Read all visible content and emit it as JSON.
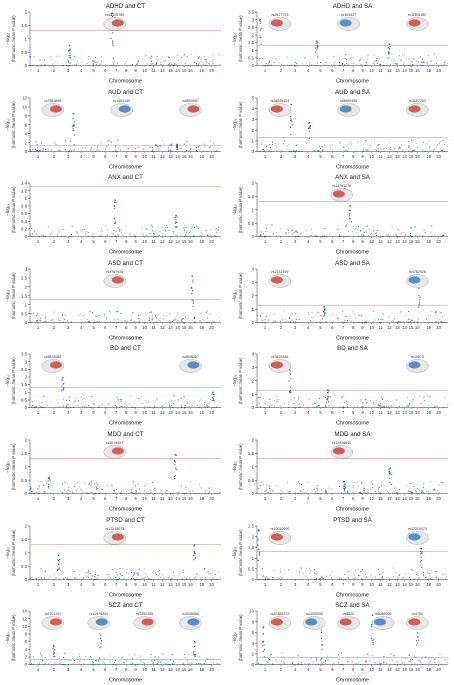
{
  "colors": {
    "blue": "#2f5f9e",
    "light_blue": "#7ea6cc",
    "threshold": "#d98080",
    "brain_red": "#c8312b",
    "brain_blue": "#2d6fb0"
  },
  "chart_data": [
    {
      "type": "scatter",
      "title": "ADHD and CT",
      "ylim": [
        0,
        2
      ],
      "yticks": [
        0,
        0.5,
        1.0,
        1.5,
        2.0
      ],
      "threshold": 1.3,
      "peaks": [
        {
          "x": 3.6,
          "y": 0.75
        },
        {
          "x": 7.1,
          "y": 1.95
        }
      ],
      "annotations": [
        "rs13205780"
      ]
    },
    {
      "type": "scatter",
      "title": "ADHD and SA",
      "ylim": [
        0,
        3.5
      ],
      "yticks": [
        0,
        0.5,
        1.0,
        1.5,
        2.0,
        2.5,
        3.0,
        3.5
      ],
      "threshold": 1.3,
      "peaks": [
        {
          "x": 1.2,
          "y": 3.0
        },
        {
          "x": 5.2,
          "y": 1.6
        },
        {
          "x": 12.5,
          "y": 1.4
        }
      ],
      "annotations": [
        "rs2527793",
        "rs304437",
        "rs11831857"
      ]
    },
    {
      "type": "scatter",
      "title": "AUD and CT",
      "ylim": [
        0,
        12
      ],
      "yticks": [
        0,
        2,
        4,
        6,
        8,
        10,
        12
      ],
      "threshold": 1.3,
      "peaks": [
        {
          "x": 3.9,
          "y": 8.5
        },
        {
          "x": 14.5,
          "y": 1.6
        }
      ],
      "annotations": [
        "rs7583896",
        "rs1463140",
        "rs6559567"
      ]
    },
    {
      "type": "scatter",
      "title": "AUD and SA",
      "ylim": [
        0,
        5
      ],
      "yticks": [
        0,
        1,
        2,
        3,
        4,
        5
      ],
      "threshold": 1.3,
      "peaks": [
        {
          "x": 3.2,
          "y": 4.4
        },
        {
          "x": 4.6,
          "y": 2.7
        }
      ],
      "annotations": [
        "rs34825124",
        "rs5869459",
        "rs2157753"
      ]
    },
    {
      "type": "scatter",
      "title": "ANX and CT",
      "ylim": [
        0,
        1.4
      ],
      "yticks": [
        0,
        0.2,
        0.4,
        0.6,
        0.8,
        1.0,
        1.2,
        1.4
      ],
      "threshold": 1.3,
      "peaks": [
        {
          "x": 7.4,
          "y": 0.95
        },
        {
          "x": 14.3,
          "y": 0.55
        }
      ],
      "annotations": []
    },
    {
      "type": "scatter",
      "title": "ANX and SA",
      "ylim": [
        0,
        2
      ],
      "yticks": [
        0,
        0.5,
        1.0,
        1.5,
        2.0
      ],
      "threshold": 1.3,
      "peaks": [
        {
          "x": 8.2,
          "y": 1.15
        }
      ],
      "annotations": [
        "rs11781276"
      ]
    },
    {
      "type": "scatter",
      "title": "ASD and CT",
      "ylim": [
        0,
        3
      ],
      "yticks": [
        0,
        0.5,
        1.0,
        1.5,
        2.0,
        2.5,
        3.0
      ],
      "threshold": 1.3,
      "peaks": [
        {
          "x": 16.8,
          "y": 2.6
        }
      ],
      "annotations": [
        "rs4787926"
      ]
    },
    {
      "type": "scatter",
      "title": "ASD and SA",
      "ylim": [
        0,
        4
      ],
      "yticks": [
        0,
        1,
        2,
        3,
        4
      ],
      "threshold": 1.3,
      "peaks": [
        {
          "x": 16.8,
          "y": 3.1
        },
        {
          "x": 5.8,
          "y": 1.2
        }
      ],
      "annotations": [
        "rs2131799",
        "rs4787926"
      ]
    },
    {
      "type": "scatter",
      "title": "BD and CT",
      "ylim": [
        0,
        3.5
      ],
      "yticks": [
        0,
        0.5,
        1.0,
        1.5,
        2.0,
        2.5,
        3.0,
        3.5
      ],
      "threshold": 1.3,
      "peaks": [
        {
          "x": 3.1,
          "y": 1.95
        },
        {
          "x": 20.8,
          "y": 1.0
        }
      ],
      "annotations": [
        "rs5834085",
        "rs4645257"
      ]
    },
    {
      "type": "scatter",
      "title": "BD and SA",
      "ylim": [
        0,
        4
      ],
      "yticks": [
        0,
        1,
        2,
        3,
        4
      ],
      "threshold": 1.3,
      "peaks": [
        {
          "x": 3.1,
          "y": 2.8
        },
        {
          "x": 6.1,
          "y": 1.3
        }
      ],
      "annotations": [
        "rs9426485",
        "rs10875"
      ]
    },
    {
      "type": "scatter",
      "title": "MDD and CT",
      "ylim": [
        0,
        2
      ],
      "yticks": [
        0,
        0.5,
        1.0,
        1.5,
        2.0
      ],
      "threshold": 1.3,
      "peaks": [
        {
          "x": 14.2,
          "y": 1.45
        },
        {
          "x": 2.2,
          "y": 0.6
        }
      ],
      "annotations": [
        "rs1079957"
      ]
    },
    {
      "type": "scatter",
      "title": "MDD and SA",
      "ylim": [
        0,
        2
      ],
      "yticks": [
        0,
        0.5,
        1.0,
        1.5,
        2.0
      ],
      "threshold": 1.3,
      "peaks": [
        {
          "x": 12.6,
          "y": 0.95
        },
        {
          "x": 7.6,
          "y": 0.45
        }
      ],
      "annotations": [
        "rs12926640"
      ]
    },
    {
      "type": "scatter",
      "title": "PTSD and CT",
      "ylim": [
        0,
        2
      ],
      "yticks": [
        0,
        0.5,
        1.0,
        1.5,
        2.0
      ],
      "threshold": 1.3,
      "peaks": [
        {
          "x": 17.2,
          "y": 1.3
        },
        {
          "x": 2.8,
          "y": 0.9
        }
      ],
      "annotations": [
        "rs17215073"
      ]
    },
    {
      "type": "scatter",
      "title": "PTSD and SA",
      "ylim": [
        0,
        2.5
      ],
      "yticks": [
        0,
        0.5,
        1.0,
        1.5,
        2.0,
        2.5
      ],
      "threshold": 1.3,
      "peaks": [
        {
          "x": 1.1,
          "y": 2.3
        },
        {
          "x": 17.1,
          "y": 1.45
        }
      ],
      "annotations": [
        "rs10010990",
        "rs17215073"
      ]
    },
    {
      "type": "scatter",
      "title": "SCZ and CT",
      "ylim": [
        0,
        14
      ],
      "yticks": [
        0,
        2,
        4,
        6,
        8,
        10,
        12,
        14
      ],
      "threshold": 1.3,
      "peaks": [
        {
          "x": 2.5,
          "y": 5.0
        },
        {
          "x": 6.1,
          "y": 11.5
        },
        {
          "x": 17.2,
          "y": 6.0
        }
      ],
      "annotations": [
        "rs6701257",
        "rs11975253",
        "rs7252305",
        "rs3935085"
      ]
    },
    {
      "type": "scatter",
      "title": "SCZ and SA",
      "ylim": [
        0,
        10
      ],
      "yticks": [
        0,
        2,
        4,
        6,
        8,
        10
      ],
      "threshold": 1.3,
      "peaks": [
        {
          "x": 1.4,
          "y": 7.0
        },
        {
          "x": 5.6,
          "y": 8.0
        },
        {
          "x": 10.6,
          "y": 9.2
        },
        {
          "x": 16.5,
          "y": 8.5
        }
      ],
      "annotations": [
        "rs10383272",
        "rs1009935",
        "rs8322",
        "rs6086998",
        "rs4784"
      ]
    }
  ],
  "axis": {
    "xlabel": "Chromosome",
    "ylabel_line1": "−log₁₀",
    "ylabel_line2": "(harmonic mean P value)",
    "chromosome_ticks": [
      "1",
      "2",
      "3",
      "4",
      "5",
      "6",
      "7",
      "8",
      "9",
      "10",
      "11",
      "12",
      "13",
      "14",
      "15",
      "16",
      "18",
      "20"
    ]
  }
}
